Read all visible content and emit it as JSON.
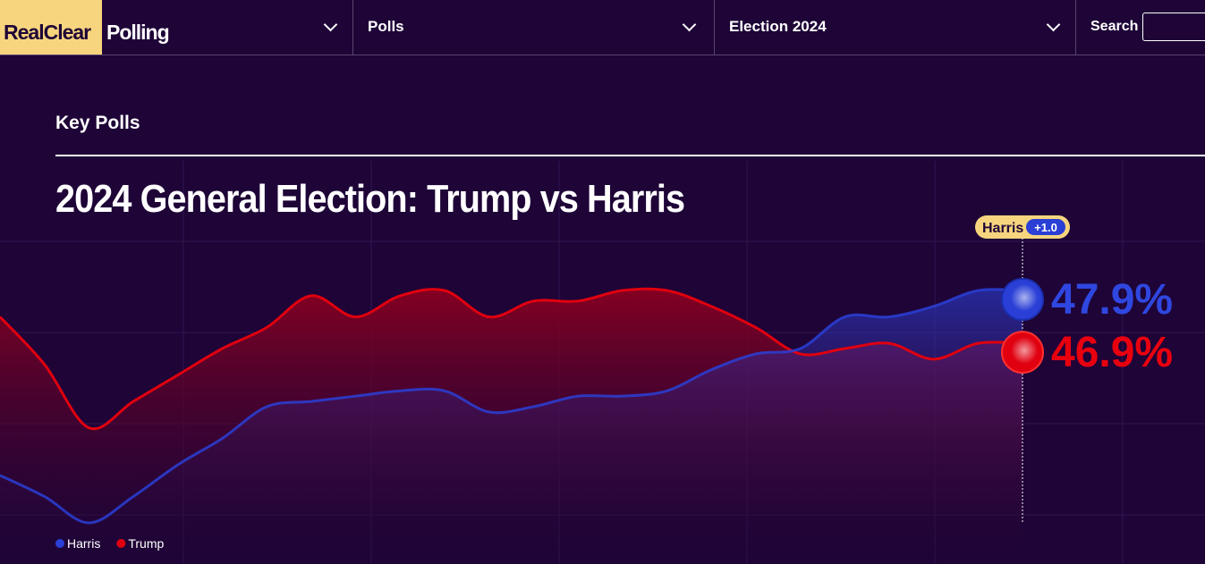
{
  "nav": {
    "logo_left": "RealClear",
    "logo_right": "Polling",
    "menus": [
      "Polls",
      "Election 2024"
    ],
    "search": "Search"
  },
  "section": "Key Polls",
  "chart_data": {
    "type": "line",
    "title": "2024 General Election: Trump vs Harris",
    "series": [
      {
        "name": "Harris",
        "color": "#2a3fd6",
        "values": [
          44.4,
          44.0,
          43.5,
          44.0,
          44.6,
          45.1,
          45.7,
          45.8,
          45.9,
          46.0,
          46.0,
          45.6,
          45.7,
          45.9,
          45.9,
          46.0,
          46.4,
          46.7,
          46.8,
          47.4,
          47.4,
          47.6,
          47.9,
          47.9
        ],
        "value_label": "47.9%"
      },
      {
        "name": "Trump",
        "color": "#e0000f",
        "values": [
          47.4,
          46.5,
          45.3,
          45.8,
          46.3,
          46.8,
          47.2,
          47.8,
          47.4,
          47.8,
          47.9,
          47.4,
          47.7,
          47.7,
          47.9,
          47.9,
          47.6,
          47.2,
          46.7,
          46.8,
          46.9,
          46.6,
          46.9,
          46.9
        ],
        "value_label": "46.9%"
      }
    ],
    "lead": {
      "name": "Harris",
      "label": "+1.0"
    }
  }
}
